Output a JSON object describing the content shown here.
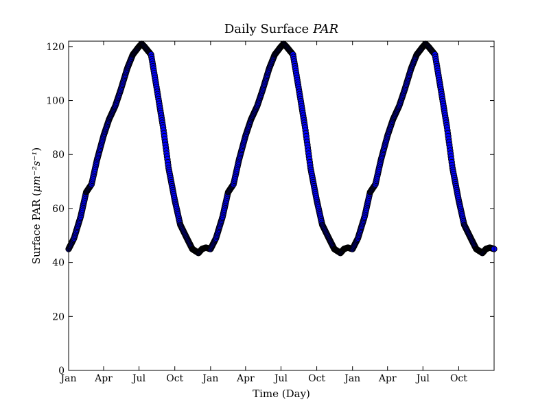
{
  "chart_data": {
    "type": "scatter",
    "title": "Daily Surface",
    "title_math": "PAR",
    "xlabel": "Time (Day)",
    "ylabel": "Surface PAR",
    "ylabel_units": "μm⁻²s⁻¹",
    "ylim": [
      0,
      122
    ],
    "xlim": [
      "Jan 1 (year 1)",
      "Dec 31 (year 3)"
    ],
    "y_ticks": [
      0,
      20,
      40,
      60,
      80,
      100,
      120
    ],
    "x_ticks": [
      "Jan",
      "Apr",
      "Jul",
      "Oct",
      "Jan",
      "Apr",
      "Jul",
      "Oct",
      "Jan",
      "Apr",
      "Jul",
      "Oct"
    ],
    "grid": false,
    "marker_color": "#0000ff",
    "marker_edge_color": "#000000",
    "annual_profile": {
      "x": [
        "Jan 1",
        "Jan 15",
        "Feb 1",
        "Feb 15",
        "Mar 1",
        "Mar 15",
        "Apr 1",
        "Apr 15",
        "May 1",
        "May 15",
        "Jun 1",
        "Jun 15",
        "Jul 1",
        "Jul 8",
        "Jul 15",
        "Aug 1",
        "Aug 15",
        "Sep 1",
        "Sep 15",
        "Oct 1",
        "Oct 15",
        "Nov 1",
        "Nov 15",
        "Dec 1",
        "Dec 10",
        "Dec 20",
        "Dec 31"
      ],
      "y": [
        45,
        49,
        57,
        66,
        69,
        78,
        87,
        93,
        98,
        104,
        112,
        117,
        120,
        121,
        120,
        117,
        105,
        90,
        75,
        63,
        54,
        49,
        45,
        43.5,
        45,
        45.5,
        45
      ]
    }
  }
}
